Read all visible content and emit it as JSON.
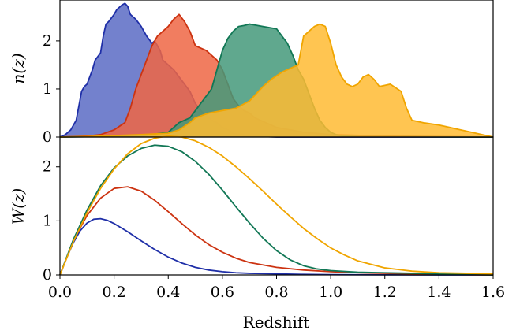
{
  "chart_data": [
    {
      "type": "area",
      "ylabel": "n(z)",
      "xlim": [
        0.0,
        1.6
      ],
      "ylim": [
        0,
        2.85
      ],
      "yticks": [
        "0",
        "1",
        "2"
      ],
      "grid": false,
      "series": [
        {
          "color": "#1f2fa8",
          "fill": "#5b6bc4",
          "x": [
            0.0,
            0.02,
            0.04,
            0.06,
            0.08,
            0.09,
            0.1,
            0.12,
            0.13,
            0.15,
            0.16,
            0.17,
            0.18,
            0.2,
            0.21,
            0.23,
            0.24,
            0.25,
            0.26,
            0.27,
            0.28,
            0.3,
            0.32,
            0.34,
            0.35,
            0.37,
            0.38,
            0.4,
            0.42,
            0.44,
            0.46,
            0.48,
            0.5,
            0.52,
            0.54,
            0.56,
            0.58,
            0.6,
            0.62,
            0.64,
            0.66,
            0.7,
            0.75,
            0.8,
            1.6
          ],
          "y": [
            0.0,
            0.05,
            0.15,
            0.35,
            0.95,
            1.05,
            1.1,
            1.4,
            1.6,
            1.75,
            2.1,
            2.35,
            2.4,
            2.55,
            2.65,
            2.75,
            2.78,
            2.72,
            2.55,
            2.5,
            2.45,
            2.3,
            2.1,
            1.95,
            2.0,
            1.8,
            1.6,
            1.5,
            1.4,
            1.25,
            1.1,
            0.95,
            0.7,
            0.55,
            0.45,
            0.35,
            0.3,
            0.2,
            0.15,
            0.08,
            0.05,
            0.03,
            0.01,
            0.0,
            0.0
          ]
        },
        {
          "color": "#cc3311",
          "fill": "#ee6644",
          "x": [
            0.0,
            0.1,
            0.15,
            0.2,
            0.24,
            0.26,
            0.28,
            0.3,
            0.32,
            0.34,
            0.36,
            0.38,
            0.4,
            0.42,
            0.44,
            0.46,
            0.48,
            0.5,
            0.52,
            0.54,
            0.56,
            0.58,
            0.6,
            0.62,
            0.64,
            0.66,
            0.68,
            0.7,
            0.72,
            0.76,
            0.8,
            0.9,
            1.0,
            1.2,
            1.6
          ],
          "y": [
            0.0,
            0.02,
            0.05,
            0.15,
            0.3,
            0.6,
            1.0,
            1.3,
            1.6,
            1.9,
            2.1,
            2.2,
            2.3,
            2.45,
            2.55,
            2.4,
            2.2,
            1.9,
            1.85,
            1.8,
            1.7,
            1.6,
            1.4,
            1.1,
            0.8,
            0.65,
            0.55,
            0.5,
            0.4,
            0.3,
            0.2,
            0.1,
            0.05,
            0.02,
            0.0
          ]
        },
        {
          "color": "#117755",
          "fill": "#44997a",
          "x": [
            0.0,
            0.3,
            0.4,
            0.44,
            0.48,
            0.52,
            0.56,
            0.58,
            0.6,
            0.62,
            0.64,
            0.66,
            0.68,
            0.7,
            0.75,
            0.8,
            0.82,
            0.84,
            0.86,
            0.88,
            0.9,
            0.92,
            0.94,
            0.96,
            0.98,
            1.0,
            1.02,
            1.05,
            1.1,
            1.6
          ],
          "y": [
            0.0,
            0.02,
            0.1,
            0.3,
            0.4,
            0.7,
            1.0,
            1.4,
            1.8,
            2.05,
            2.2,
            2.3,
            2.32,
            2.35,
            2.3,
            2.25,
            2.1,
            1.95,
            1.7,
            1.4,
            1.2,
            0.9,
            0.6,
            0.35,
            0.2,
            0.1,
            0.05,
            0.02,
            0.01,
            0.0
          ]
        },
        {
          "color": "#f0a500",
          "fill": "#ffbb33",
          "x": [
            0.0,
            0.1,
            0.2,
            0.3,
            0.4,
            0.44,
            0.48,
            0.5,
            0.55,
            0.6,
            0.65,
            0.7,
            0.75,
            0.78,
            0.82,
            0.86,
            0.88,
            0.9,
            0.92,
            0.94,
            0.96,
            0.98,
            1.0,
            1.02,
            1.04,
            1.06,
            1.08,
            1.1,
            1.12,
            1.14,
            1.16,
            1.18,
            1.22,
            1.26,
            1.28,
            1.3,
            1.34,
            1.4,
            1.44,
            1.48,
            1.52,
            1.56,
            1.6
          ],
          "y": [
            0.0,
            0.01,
            0.03,
            0.05,
            0.08,
            0.15,
            0.3,
            0.4,
            0.5,
            0.55,
            0.6,
            0.75,
            1.05,
            1.2,
            1.35,
            1.45,
            1.5,
            2.1,
            2.2,
            2.3,
            2.35,
            2.3,
            1.95,
            1.5,
            1.25,
            1.1,
            1.05,
            1.1,
            1.25,
            1.3,
            1.2,
            1.05,
            1.1,
            0.95,
            0.6,
            0.35,
            0.3,
            0.25,
            0.2,
            0.15,
            0.1,
            0.05,
            0.0
          ]
        }
      ]
    },
    {
      "type": "line",
      "ylabel": "W(z)",
      "xlabel": "Redshift",
      "xlim": [
        0.0,
        1.6
      ],
      "ylim": [
        0,
        2.55
      ],
      "xticks": [
        "0.0",
        "0.2",
        "0.4",
        "0.6",
        "0.8",
        "1.0",
        "1.2",
        "1.4",
        "1.6"
      ],
      "yticks": [
        "0",
        "1",
        "2"
      ],
      "grid": false,
      "series": [
        {
          "color": "#1f2fa8",
          "x": [
            0.0,
            0.025,
            0.05,
            0.075,
            0.1,
            0.125,
            0.15,
            0.175,
            0.2,
            0.25,
            0.3,
            0.35,
            0.4,
            0.45,
            0.5,
            0.55,
            0.6,
            0.65,
            0.7,
            0.8,
            0.9,
            1.0,
            1.2,
            1.4,
            1.6
          ],
          "y": [
            0.0,
            0.32,
            0.6,
            0.82,
            0.96,
            1.03,
            1.04,
            1.01,
            0.95,
            0.8,
            0.63,
            0.47,
            0.33,
            0.22,
            0.14,
            0.09,
            0.06,
            0.04,
            0.03,
            0.02,
            0.01,
            0.005,
            0.002,
            0.001,
            0.0
          ]
        },
        {
          "color": "#cc3311",
          "x": [
            0.0,
            0.05,
            0.1,
            0.15,
            0.2,
            0.25,
            0.3,
            0.35,
            0.4,
            0.45,
            0.5,
            0.55,
            0.6,
            0.65,
            0.7,
            0.8,
            0.9,
            1.0,
            1.1,
            1.2,
            1.4,
            1.6
          ],
          "y": [
            0.0,
            0.64,
            1.1,
            1.42,
            1.6,
            1.63,
            1.55,
            1.38,
            1.17,
            0.95,
            0.74,
            0.56,
            0.42,
            0.31,
            0.23,
            0.14,
            0.09,
            0.06,
            0.04,
            0.03,
            0.01,
            0.0
          ]
        },
        {
          "color": "#117755",
          "x": [
            0.0,
            0.05,
            0.1,
            0.15,
            0.2,
            0.25,
            0.3,
            0.35,
            0.4,
            0.45,
            0.5,
            0.55,
            0.6,
            0.65,
            0.7,
            0.75,
            0.8,
            0.85,
            0.9,
            0.95,
            1.0,
            1.1,
            1.2,
            1.3,
            1.4,
            1.5,
            1.6
          ],
          "y": [
            0.0,
            0.66,
            1.2,
            1.65,
            1.98,
            2.2,
            2.34,
            2.4,
            2.38,
            2.28,
            2.1,
            1.86,
            1.57,
            1.26,
            0.96,
            0.68,
            0.45,
            0.28,
            0.17,
            0.11,
            0.08,
            0.05,
            0.04,
            0.03,
            0.02,
            0.01,
            0.0
          ]
        },
        {
          "color": "#f0a500",
          "x": [
            0.0,
            0.05,
            0.1,
            0.15,
            0.2,
            0.25,
            0.3,
            0.35,
            0.4,
            0.45,
            0.5,
            0.55,
            0.6,
            0.65,
            0.7,
            0.75,
            0.8,
            0.85,
            0.9,
            0.95,
            1.0,
            1.05,
            1.1,
            1.2,
            1.3,
            1.4,
            1.5,
            1.6
          ],
          "y": [
            0.0,
            0.62,
            1.15,
            1.6,
            1.96,
            2.24,
            2.43,
            2.53,
            2.57,
            2.55,
            2.48,
            2.36,
            2.2,
            2.0,
            1.78,
            1.55,
            1.31,
            1.08,
            0.86,
            0.67,
            0.5,
            0.37,
            0.26,
            0.13,
            0.07,
            0.04,
            0.03,
            0.02
          ]
        }
      ]
    }
  ]
}
